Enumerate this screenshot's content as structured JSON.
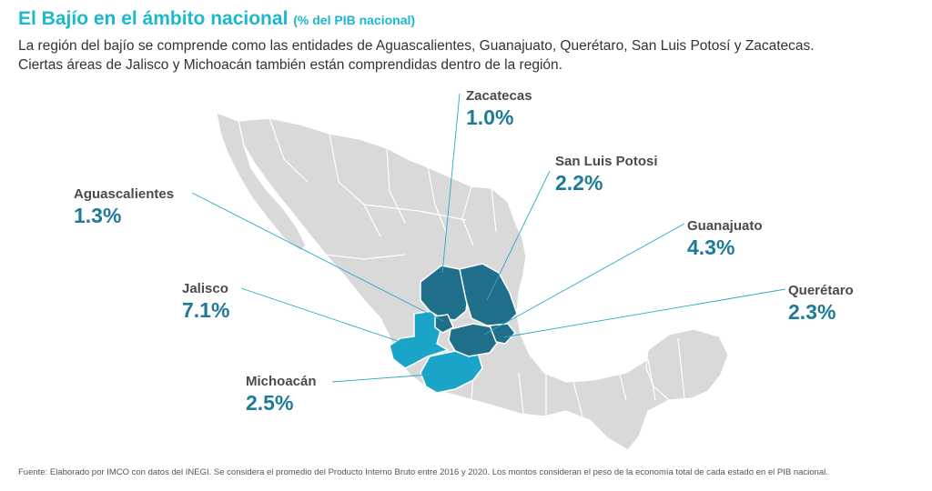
{
  "title": "El Bajío en el ámbito nacional",
  "subtitle": "(% del PIB nacional)",
  "description": [
    "La región del bajío se comprende como las entidades de Aguascalientes, Guanajuato, Querétaro, San Luis Potosí y Zacatecas.",
    "Ciertas áreas de Jalisco y Michoacán también están comprendidas  dentro de la región."
  ],
  "colors": {
    "title": "#1bb8cf",
    "value": "#1d7b98",
    "land": "#d9d9d9",
    "dark_region": "#1f6f8a",
    "light_region": "#1aa5c8",
    "leader_line": "#2aa8c8"
  },
  "states": {
    "zacatecas": {
      "name": "Zacatecas",
      "value": "1.0%"
    },
    "san_luis_potosi": {
      "name": "San Luis Potosi",
      "value": "2.2%"
    },
    "aguascalientes": {
      "name": "Aguascalientes",
      "value": "1.3%"
    },
    "guanajuato": {
      "name": "Guanajuato",
      "value": "4.3%"
    },
    "jalisco": {
      "name": "Jalisco",
      "value": "7.1%"
    },
    "queretaro": {
      "name": "Querétaro",
      "value": "2.3%"
    },
    "michoacan": {
      "name": "Michoacán",
      "value": "2.5%"
    }
  },
  "source": "Fuente: Elaborado por IMCO con datos del INEGI. Se considera el promedio del Producto Interno Bruto entre 2016 y 2020. Los montos consideran el peso de la economía total de cada estado en el PIB nacional."
}
